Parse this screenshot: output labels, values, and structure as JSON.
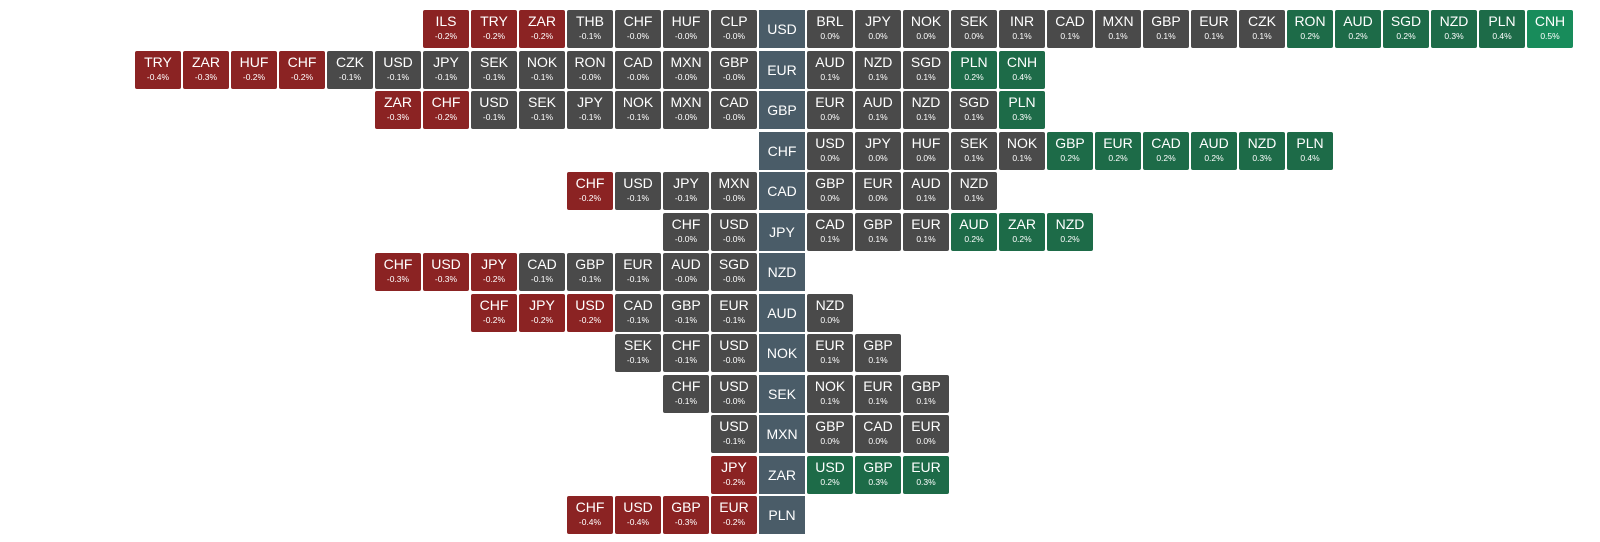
{
  "colors": {
    "strong_negative": "#8b2323",
    "neutral": "#4a4a4a",
    "positive": "#1d6b48",
    "strong_positive": "#188c5b",
    "base": "#4a5c68"
  },
  "rows": [
    {
      "base": "USD",
      "left": [
        {
          "sym": "ILS",
          "chg": "-0.2%",
          "v": -0.2
        },
        {
          "sym": "TRY",
          "chg": "-0.2%",
          "v": -0.2
        },
        {
          "sym": "ZAR",
          "chg": "-0.2%",
          "v": -0.2
        },
        {
          "sym": "THB",
          "chg": "-0.1%",
          "v": -0.1
        },
        {
          "sym": "CHF",
          "chg": "-0.0%",
          "v": -0.0
        },
        {
          "sym": "HUF",
          "chg": "-0.0%",
          "v": -0.0
        },
        {
          "sym": "CLP",
          "chg": "-0.0%",
          "v": -0.0
        }
      ],
      "right": [
        {
          "sym": "BRL",
          "chg": "0.0%",
          "v": 0.0
        },
        {
          "sym": "JPY",
          "chg": "0.0%",
          "v": 0.0
        },
        {
          "sym": "NOK",
          "chg": "0.0%",
          "v": 0.0
        },
        {
          "sym": "SEK",
          "chg": "0.0%",
          "v": 0.0
        },
        {
          "sym": "INR",
          "chg": "0.1%",
          "v": 0.1
        },
        {
          "sym": "CAD",
          "chg": "0.1%",
          "v": 0.1
        },
        {
          "sym": "MXN",
          "chg": "0.1%",
          "v": 0.1
        },
        {
          "sym": "GBP",
          "chg": "0.1%",
          "v": 0.1
        },
        {
          "sym": "EUR",
          "chg": "0.1%",
          "v": 0.1
        },
        {
          "sym": "CZK",
          "chg": "0.1%",
          "v": 0.1
        },
        {
          "sym": "RON",
          "chg": "0.2%",
          "v": 0.2
        },
        {
          "sym": "AUD",
          "chg": "0.2%",
          "v": 0.2
        },
        {
          "sym": "SGD",
          "chg": "0.2%",
          "v": 0.2
        },
        {
          "sym": "NZD",
          "chg": "0.3%",
          "v": 0.3
        },
        {
          "sym": "PLN",
          "chg": "0.4%",
          "v": 0.4
        },
        {
          "sym": "CNH",
          "chg": "0.5%",
          "v": 0.5
        }
      ]
    },
    {
      "base": "EUR",
      "left": [
        {
          "sym": "TRY",
          "chg": "-0.4%",
          "v": -0.4
        },
        {
          "sym": "ZAR",
          "chg": "-0.3%",
          "v": -0.3
        },
        {
          "sym": "HUF",
          "chg": "-0.2%",
          "v": -0.2
        },
        {
          "sym": "CHF",
          "chg": "-0.2%",
          "v": -0.2
        },
        {
          "sym": "CZK",
          "chg": "-0.1%",
          "v": -0.1
        },
        {
          "sym": "USD",
          "chg": "-0.1%",
          "v": -0.1
        },
        {
          "sym": "JPY",
          "chg": "-0.1%",
          "v": -0.1
        },
        {
          "sym": "SEK",
          "chg": "-0.1%",
          "v": -0.1
        },
        {
          "sym": "NOK",
          "chg": "-0.1%",
          "v": -0.1
        },
        {
          "sym": "RON",
          "chg": "-0.0%",
          "v": -0.0
        },
        {
          "sym": "CAD",
          "chg": "-0.0%",
          "v": -0.0
        },
        {
          "sym": "MXN",
          "chg": "-0.0%",
          "v": -0.0
        },
        {
          "sym": "GBP",
          "chg": "-0.0%",
          "v": -0.0
        }
      ],
      "right": [
        {
          "sym": "AUD",
          "chg": "0.1%",
          "v": 0.1
        },
        {
          "sym": "NZD",
          "chg": "0.1%",
          "v": 0.1
        },
        {
          "sym": "SGD",
          "chg": "0.1%",
          "v": 0.1
        },
        {
          "sym": "PLN",
          "chg": "0.2%",
          "v": 0.2
        },
        {
          "sym": "CNH",
          "chg": "0.4%",
          "v": 0.4
        }
      ]
    },
    {
      "base": "GBP",
      "left": [
        {
          "sym": "ZAR",
          "chg": "-0.3%",
          "v": -0.3
        },
        {
          "sym": "CHF",
          "chg": "-0.2%",
          "v": -0.2
        },
        {
          "sym": "USD",
          "chg": "-0.1%",
          "v": -0.1
        },
        {
          "sym": "SEK",
          "chg": "-0.1%",
          "v": -0.1
        },
        {
          "sym": "JPY",
          "chg": "-0.1%",
          "v": -0.1
        },
        {
          "sym": "NOK",
          "chg": "-0.1%",
          "v": -0.1
        },
        {
          "sym": "MXN",
          "chg": "-0.0%",
          "v": -0.0
        },
        {
          "sym": "CAD",
          "chg": "-0.0%",
          "v": -0.0
        }
      ],
      "right": [
        {
          "sym": "EUR",
          "chg": "0.0%",
          "v": 0.0
        },
        {
          "sym": "AUD",
          "chg": "0.1%",
          "v": 0.1
        },
        {
          "sym": "NZD",
          "chg": "0.1%",
          "v": 0.1
        },
        {
          "sym": "SGD",
          "chg": "0.1%",
          "v": 0.1
        },
        {
          "sym": "PLN",
          "chg": "0.3%",
          "v": 0.3
        }
      ]
    },
    {
      "base": "CHF",
      "left": [],
      "right": [
        {
          "sym": "USD",
          "chg": "0.0%",
          "v": 0.0
        },
        {
          "sym": "JPY",
          "chg": "0.0%",
          "v": 0.0
        },
        {
          "sym": "HUF",
          "chg": "0.0%",
          "v": 0.0
        },
        {
          "sym": "SEK",
          "chg": "0.1%",
          "v": 0.1
        },
        {
          "sym": "NOK",
          "chg": "0.1%",
          "v": 0.1
        },
        {
          "sym": "GBP",
          "chg": "0.2%",
          "v": 0.2
        },
        {
          "sym": "EUR",
          "chg": "0.2%",
          "v": 0.2
        },
        {
          "sym": "CAD",
          "chg": "0.2%",
          "v": 0.2
        },
        {
          "sym": "AUD",
          "chg": "0.2%",
          "v": 0.2
        },
        {
          "sym": "NZD",
          "chg": "0.3%",
          "v": 0.3
        },
        {
          "sym": "PLN",
          "chg": "0.4%",
          "v": 0.4
        }
      ]
    },
    {
      "base": "CAD",
      "left": [
        {
          "sym": "CHF",
          "chg": "-0.2%",
          "v": -0.2
        },
        {
          "sym": "USD",
          "chg": "-0.1%",
          "v": -0.1
        },
        {
          "sym": "JPY",
          "chg": "-0.1%",
          "v": -0.1
        },
        {
          "sym": "MXN",
          "chg": "-0.0%",
          "v": -0.0
        }
      ],
      "right": [
        {
          "sym": "GBP",
          "chg": "0.0%",
          "v": 0.0
        },
        {
          "sym": "EUR",
          "chg": "0.0%",
          "v": 0.0
        },
        {
          "sym": "AUD",
          "chg": "0.1%",
          "v": 0.1
        },
        {
          "sym": "NZD",
          "chg": "0.1%",
          "v": 0.1
        }
      ]
    },
    {
      "base": "JPY",
      "left": [
        {
          "sym": "CHF",
          "chg": "-0.0%",
          "v": -0.0
        },
        {
          "sym": "USD",
          "chg": "-0.0%",
          "v": -0.0
        }
      ],
      "right": [
        {
          "sym": "CAD",
          "chg": "0.1%",
          "v": 0.1
        },
        {
          "sym": "GBP",
          "chg": "0.1%",
          "v": 0.1
        },
        {
          "sym": "EUR",
          "chg": "0.1%",
          "v": 0.1
        },
        {
          "sym": "AUD",
          "chg": "0.2%",
          "v": 0.2
        },
        {
          "sym": "ZAR",
          "chg": "0.2%",
          "v": 0.2
        },
        {
          "sym": "NZD",
          "chg": "0.2%",
          "v": 0.2
        }
      ]
    },
    {
      "base": "NZD",
      "left": [
        {
          "sym": "CHF",
          "chg": "-0.3%",
          "v": -0.3
        },
        {
          "sym": "USD",
          "chg": "-0.3%",
          "v": -0.3
        },
        {
          "sym": "JPY",
          "chg": "-0.2%",
          "v": -0.2
        },
        {
          "sym": "CAD",
          "chg": "-0.1%",
          "v": -0.1
        },
        {
          "sym": "GBP",
          "chg": "-0.1%",
          "v": -0.1
        },
        {
          "sym": "EUR",
          "chg": "-0.1%",
          "v": -0.1
        },
        {
          "sym": "AUD",
          "chg": "-0.0%",
          "v": -0.0
        },
        {
          "sym": "SGD",
          "chg": "-0.0%",
          "v": -0.0
        }
      ],
      "right": []
    },
    {
      "base": "AUD",
      "left": [
        {
          "sym": "CHF",
          "chg": "-0.2%",
          "v": -0.2
        },
        {
          "sym": "JPY",
          "chg": "-0.2%",
          "v": -0.2
        },
        {
          "sym": "USD",
          "chg": "-0.2%",
          "v": -0.2
        },
        {
          "sym": "CAD",
          "chg": "-0.1%",
          "v": -0.1
        },
        {
          "sym": "GBP",
          "chg": "-0.1%",
          "v": -0.1
        },
        {
          "sym": "EUR",
          "chg": "-0.1%",
          "v": -0.1
        }
      ],
      "right": [
        {
          "sym": "NZD",
          "chg": "0.0%",
          "v": 0.0
        }
      ]
    },
    {
      "base": "NOK",
      "left": [
        {
          "sym": "SEK",
          "chg": "-0.1%",
          "v": -0.1
        },
        {
          "sym": "CHF",
          "chg": "-0.1%",
          "v": -0.1
        },
        {
          "sym": "USD",
          "chg": "-0.0%",
          "v": -0.0
        }
      ],
      "right": [
        {
          "sym": "EUR",
          "chg": "0.1%",
          "v": 0.1
        },
        {
          "sym": "GBP",
          "chg": "0.1%",
          "v": 0.1
        }
      ]
    },
    {
      "base": "SEK",
      "left": [
        {
          "sym": "CHF",
          "chg": "-0.1%",
          "v": -0.1
        },
        {
          "sym": "USD",
          "chg": "-0.0%",
          "v": -0.0
        }
      ],
      "right": [
        {
          "sym": "NOK",
          "chg": "0.1%",
          "v": 0.1
        },
        {
          "sym": "EUR",
          "chg": "0.1%",
          "v": 0.1
        },
        {
          "sym": "GBP",
          "chg": "0.1%",
          "v": 0.1
        }
      ]
    },
    {
      "base": "MXN",
      "left": [
        {
          "sym": "USD",
          "chg": "-0.1%",
          "v": -0.1
        }
      ],
      "right": [
        {
          "sym": "GBP",
          "chg": "0.0%",
          "v": 0.0
        },
        {
          "sym": "CAD",
          "chg": "0.0%",
          "v": 0.0
        },
        {
          "sym": "EUR",
          "chg": "0.0%",
          "v": 0.0
        }
      ]
    },
    {
      "base": "ZAR",
      "left": [
        {
          "sym": "JPY",
          "chg": "-0.2%",
          "v": -0.2
        }
      ],
      "right": [
        {
          "sym": "USD",
          "chg": "0.2%",
          "v": 0.2
        },
        {
          "sym": "GBP",
          "chg": "0.3%",
          "v": 0.3
        },
        {
          "sym": "EUR",
          "chg": "0.3%",
          "v": 0.3
        }
      ]
    },
    {
      "base": "PLN",
      "left": [
        {
          "sym": "CHF",
          "chg": "-0.4%",
          "v": -0.4
        },
        {
          "sym": "USD",
          "chg": "-0.4%",
          "v": -0.4
        },
        {
          "sym": "GBP",
          "chg": "-0.3%",
          "v": -0.3
        },
        {
          "sym": "EUR",
          "chg": "-0.2%",
          "v": -0.2
        }
      ],
      "right": []
    }
  ]
}
